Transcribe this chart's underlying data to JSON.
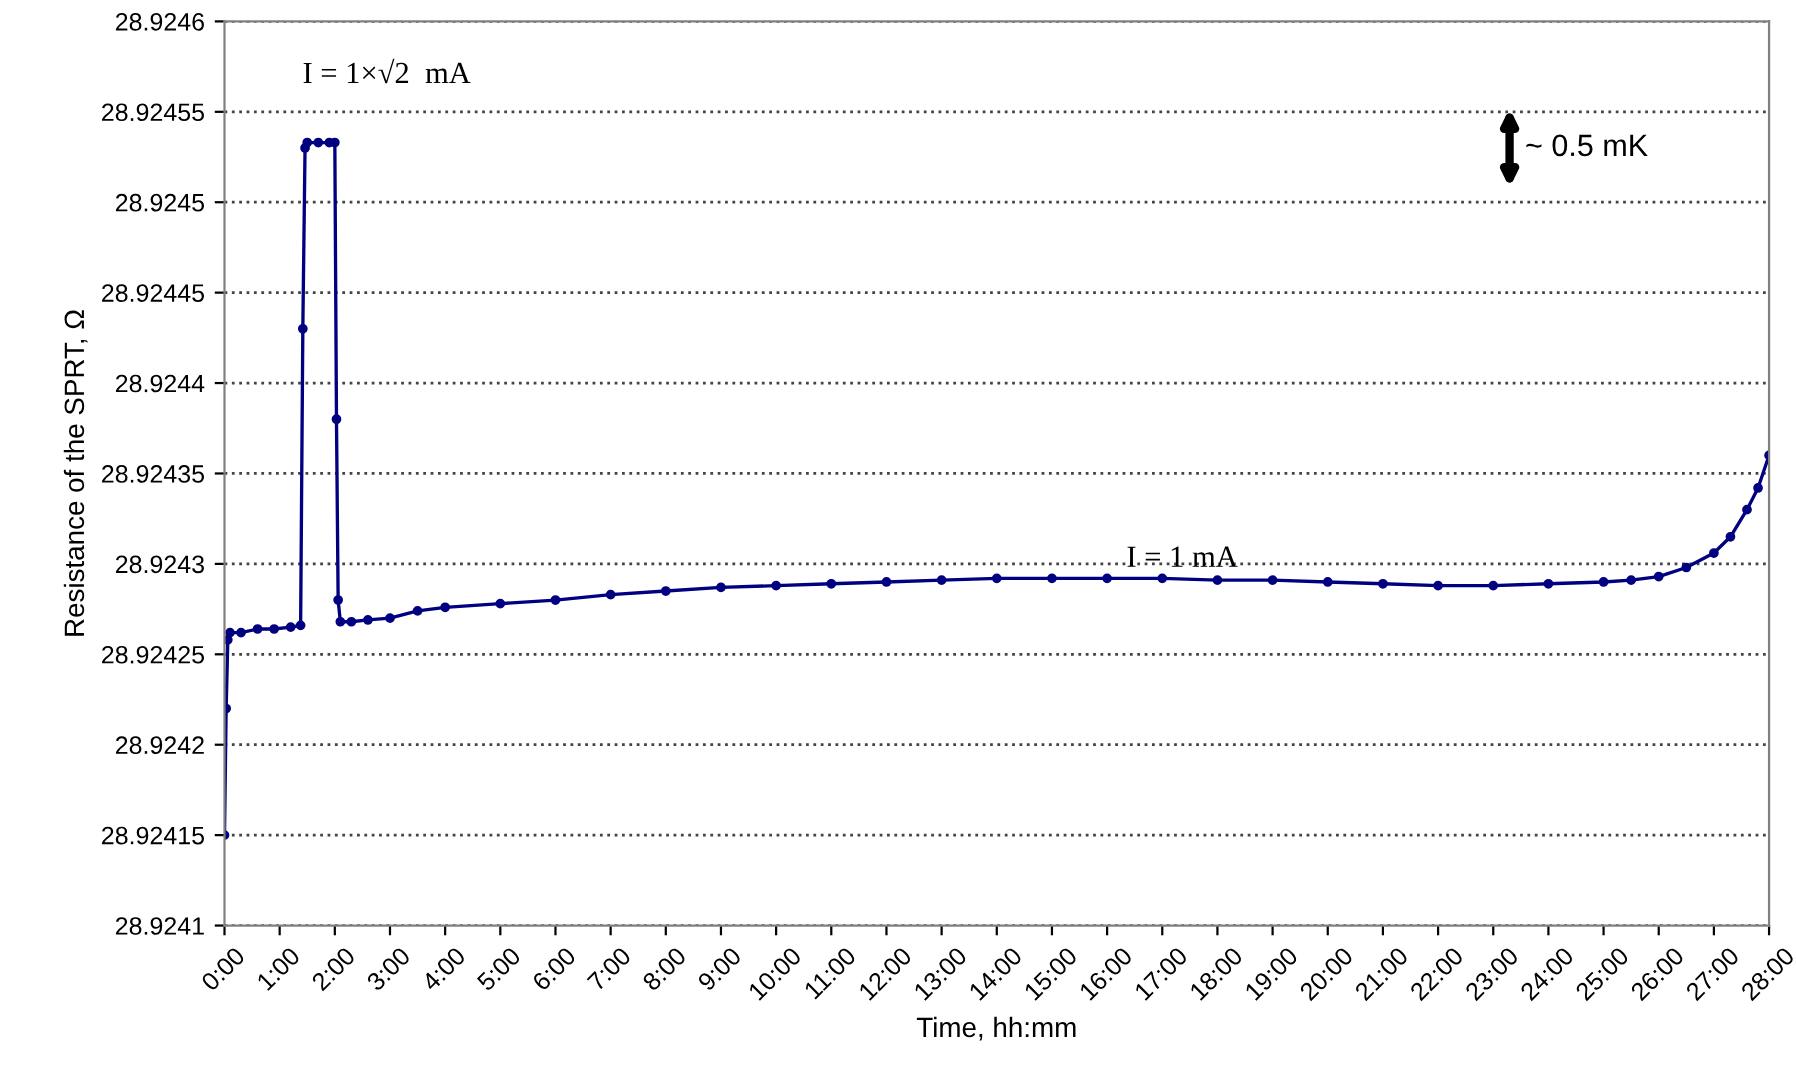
{
  "chart_data": {
    "type": "line",
    "xlabel": "Time, hh:mm",
    "ylabel": "Resistance of the SPRT, Ω",
    "series": [
      {
        "color": "#000080",
        "x": [
          0,
          0.03,
          0.06,
          0.1,
          0.3,
          0.6,
          0.9,
          1.2,
          1.38,
          1.42,
          1.46,
          1.5,
          1.7,
          1.9,
          2.0,
          2.03,
          2.06,
          2.1,
          2.3,
          2.6,
          3.0,
          3.5,
          4.0,
          5.0,
          6.0,
          7.0,
          8.0,
          9.0,
          10.0,
          11.0,
          12.0,
          13.0,
          14.0,
          15.0,
          16.0,
          17.0,
          18.0,
          19.0,
          20.0,
          21.0,
          22.0,
          23.0,
          24.0,
          25.0,
          25.5,
          26.0,
          26.5,
          27.0,
          27.3,
          27.6,
          27.8,
          28.0
        ],
        "values": [
          28.92415,
          28.92422,
          28.924258,
          28.924262,
          28.924262,
          28.924264,
          28.924264,
          28.924265,
          28.924266,
          28.92443,
          28.92453,
          28.924533,
          28.924533,
          28.924533,
          28.924533,
          28.92438,
          28.92428,
          28.924268,
          28.924268,
          28.924269,
          28.92427,
          28.924274,
          28.924276,
          28.924278,
          28.92428,
          28.924283,
          28.924285,
          28.924287,
          28.924288,
          28.924289,
          28.92429,
          28.924291,
          28.924292,
          28.924292,
          28.924292,
          28.924292,
          28.924291,
          28.924291,
          28.92429,
          28.924289,
          28.924288,
          28.924288,
          28.924289,
          28.92429,
          28.924291,
          28.924293,
          28.924298,
          28.924306,
          28.924315,
          28.92433,
          28.924342,
          28.92436
        ]
      }
    ],
    "xlim": [
      0,
      28
    ],
    "ylim": [
      28.9241,
      28.9246
    ],
    "xticks": [
      {
        "value": 0,
        "label": "0:00"
      },
      {
        "value": 1,
        "label": "1:00"
      },
      {
        "value": 2,
        "label": "2:00"
      },
      {
        "value": 3,
        "label": "3:00"
      },
      {
        "value": 4,
        "label": "4:00"
      },
      {
        "value": 5,
        "label": "5:00"
      },
      {
        "value": 6,
        "label": "6:00"
      },
      {
        "value": 7,
        "label": "7:00"
      },
      {
        "value": 8,
        "label": "8:00"
      },
      {
        "value": 9,
        "label": "9:00"
      },
      {
        "value": 10,
        "label": "10:00"
      },
      {
        "value": 11,
        "label": "11:00"
      },
      {
        "value": 12,
        "label": "12:00"
      },
      {
        "value": 13,
        "label": "13:00"
      },
      {
        "value": 14,
        "label": "14:00"
      },
      {
        "value": 15,
        "label": "15:00"
      },
      {
        "value": 16,
        "label": "16:00"
      },
      {
        "value": 17,
        "label": "17:00"
      },
      {
        "value": 18,
        "label": "18:00"
      },
      {
        "value": 19,
        "label": "19:00"
      },
      {
        "value": 20,
        "label": "20:00"
      },
      {
        "value": 21,
        "label": "21:00"
      },
      {
        "value": 22,
        "label": "22:00"
      },
      {
        "value": 23,
        "label": "23:00"
      },
      {
        "value": 24,
        "label": "24:00"
      },
      {
        "value": 25,
        "label": "25:00"
      },
      {
        "value": 26,
        "label": "26:00"
      },
      {
        "value": 27,
        "label": "27:00"
      },
      {
        "value": 28,
        "label": "28:00"
      }
    ],
    "yticks": [
      28.9241,
      28.92415,
      28.9242,
      28.92425,
      28.9243,
      28.92435,
      28.9244,
      28.92445,
      28.9245,
      28.92455,
      28.9246
    ],
    "grid": "y",
    "marker": "circle",
    "line_style": "solid",
    "annotations": [
      "I = 1×√2  mA",
      "I = 1 mA",
      "~ 0.5 mK"
    ]
  }
}
